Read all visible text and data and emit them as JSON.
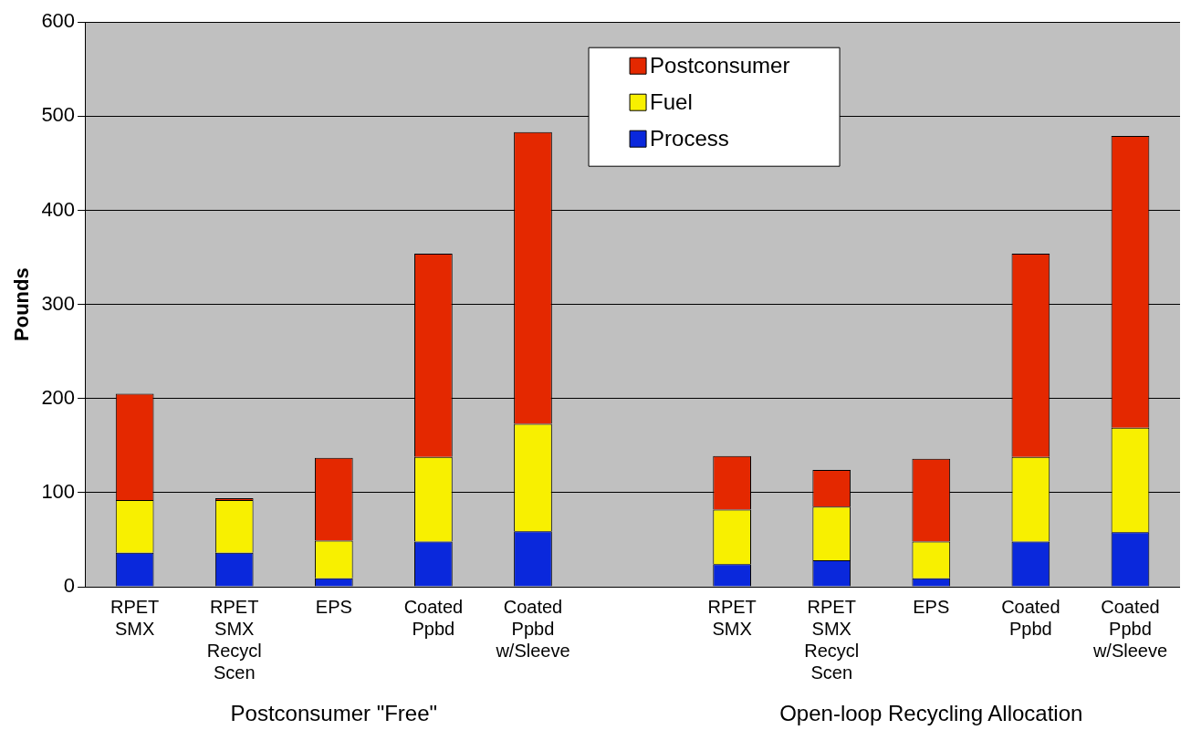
{
  "chart_data": {
    "type": "bar",
    "stacked": true,
    "ylabel": "Pounds",
    "categories": [
      "RPET SMX",
      "RPET SMX Recycl Scen",
      "EPS",
      "Coated Ppbd",
      "Coated Ppbd w/Sleeve",
      null,
      "RPET SMX",
      "RPET SMX Recycl Scen",
      "EPS",
      "Coated Ppbd",
      "Coated Ppbd w/Sleeve"
    ],
    "series": [
      {
        "name": "Process",
        "color": "#0a28dc",
        "values": [
          36,
          36,
          9,
          48,
          59,
          null,
          24,
          28,
          9,
          48,
          58
        ]
      },
      {
        "name": "Fuel",
        "color": "#f8f000",
        "values": [
          56,
          56,
          40,
          90,
          114,
          null,
          58,
          57,
          39,
          90,
          111
        ]
      },
      {
        "name": "Postconsumer",
        "color": "#e42800",
        "values": [
          113,
          2,
          88,
          216,
          310,
          null,
          57,
          39,
          88,
          216,
          310
        ]
      }
    ],
    "ylim": [
      0,
      600
    ],
    "yticks": [
      0,
      100,
      200,
      300,
      400,
      500,
      600
    ],
    "grid": "y",
    "legend": "top",
    "annotations": [
      "Postconsumer \"Free\"",
      "Open-loop Recycling Allocation"
    ]
  }
}
